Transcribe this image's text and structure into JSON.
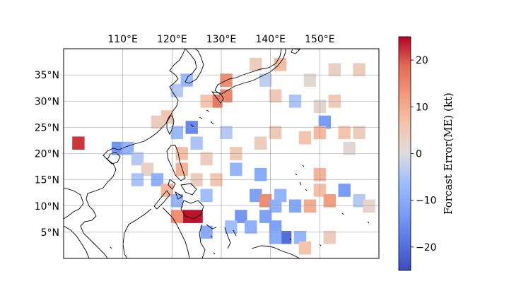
{
  "chart_data": {
    "type": "heatmap",
    "title": "",
    "xlabel": "",
    "ylabel": "",
    "projection": "PlateCarree",
    "lon_range": [
      98,
      162
    ],
    "lat_range": [
      0,
      40
    ],
    "cell_size_deg": 2.5,
    "grid": true,
    "x_ticks": [
      "110°E",
      "120°E",
      "130°E",
      "140°E",
      "150°E"
    ],
    "x_tick_values": [
      110,
      120,
      130,
      140,
      150
    ],
    "y_ticks": [
      "35°N",
      "30°N",
      "25°N",
      "20°N",
      "15°N",
      "10°N",
      "5°N"
    ],
    "y_tick_values": [
      35,
      30,
      25,
      20,
      15,
      10,
      5
    ],
    "colorbar": {
      "label": "Forcast Error(ME) (kt)",
      "colormap": "coolwarm",
      "range": [
        -25,
        25
      ],
      "ticks": [
        "20",
        "10",
        "0",
        "−10",
        "−20"
      ],
      "tick_values": [
        20,
        10,
        0,
        -10,
        -20
      ],
      "placement": "right"
    },
    "cells": [
      {
        "lon": 101,
        "lat": 22,
        "value": 22
      },
      {
        "lon": 109,
        "lat": 21,
        "value": -14
      },
      {
        "lon": 111,
        "lat": 21,
        "value": -8
      },
      {
        "lon": 113,
        "lat": 19,
        "value": -4
      },
      {
        "lon": 115,
        "lat": 17,
        "value": 3
      },
      {
        "lon": 113,
        "lat": 15,
        "value": -5
      },
      {
        "lon": 117,
        "lat": 15,
        "value": -9
      },
      {
        "lon": 119,
        "lat": 13,
        "value": 8
      },
      {
        "lon": 121,
        "lat": 11,
        "value": -8
      },
      {
        "lon": 123,
        "lat": 8,
        "value": 24
      },
      {
        "lon": 125,
        "lat": 8,
        "value": 24
      },
      {
        "lon": 121,
        "lat": 8,
        "value": 14
      },
      {
        "lon": 127,
        "lat": 5,
        "value": -10
      },
      {
        "lon": 129,
        "lat": 30,
        "value": 17
      },
      {
        "lon": 131,
        "lat": 31,
        "value": 15
      },
      {
        "lon": 131,
        "lat": 34,
        "value": 14
      },
      {
        "lon": 124,
        "lat": 25,
        "value": -16
      },
      {
        "lon": 121,
        "lat": 24,
        "value": -7
      },
      {
        "lon": 119,
        "lat": 27,
        "value": 6
      },
      {
        "lon": 117,
        "lat": 26,
        "value": 4
      },
      {
        "lon": 127,
        "lat": 30,
        "value": 6
      },
      {
        "lon": 121,
        "lat": 32,
        "value": -4
      },
      {
        "lon": 123,
        "lat": 34,
        "value": -7
      },
      {
        "lon": 137,
        "lat": 37,
        "value": 4
      },
      {
        "lon": 142,
        "lat": 37,
        "value": 7
      },
      {
        "lon": 139,
        "lat": 34,
        "value": -3
      },
      {
        "lon": 141,
        "lat": 31,
        "value": 5
      },
      {
        "lon": 145,
        "lat": 30,
        "value": -5
      },
      {
        "lon": 150,
        "lat": 29,
        "value": 2
      },
      {
        "lon": 148,
        "lat": 34,
        "value": 1
      },
      {
        "lon": 153,
        "lat": 30,
        "value": 5
      },
      {
        "lon": 153,
        "lat": 36,
        "value": 3
      },
      {
        "lon": 158,
        "lat": 36,
        "value": 4
      },
      {
        "lon": 151,
        "lat": 26,
        "value": -13
      },
      {
        "lon": 150,
        "lat": 24,
        "value": 8
      },
      {
        "lon": 155,
        "lat": 24,
        "value": 6
      },
      {
        "lon": 158,
        "lat": 24,
        "value": 4
      },
      {
        "lon": 156,
        "lat": 21,
        "value": 1
      },
      {
        "lon": 147,
        "lat": 23,
        "value": 6
      },
      {
        "lon": 141,
        "lat": 24,
        "value": 5
      },
      {
        "lon": 138,
        "lat": 22,
        "value": 4
      },
      {
        "lon": 133,
        "lat": 20,
        "value": 5
      },
      {
        "lon": 127,
        "lat": 19,
        "value": 4
      },
      {
        "lon": 133,
        "lat": 17,
        "value": -8
      },
      {
        "lon": 138,
        "lat": 16,
        "value": -10
      },
      {
        "lon": 137,
        "lat": 12,
        "value": -12
      },
      {
        "lon": 139,
        "lat": 11,
        "value": 14
      },
      {
        "lon": 142,
        "lat": 12,
        "value": -8
      },
      {
        "lon": 150,
        "lat": 16,
        "value": 9
      },
      {
        "lon": 150,
        "lat": 13,
        "value": 7
      },
      {
        "lon": 152,
        "lat": 11,
        "value": 12
      },
      {
        "lon": 155,
        "lat": 13,
        "value": -13
      },
      {
        "lon": 158,
        "lat": 11,
        "value": -4
      },
      {
        "lon": 160,
        "lat": 10,
        "value": 2
      },
      {
        "lon": 148,
        "lat": 10,
        "value": 10
      },
      {
        "lon": 145,
        "lat": 10,
        "value": -11
      },
      {
        "lon": 141,
        "lat": 10,
        "value": -9
      },
      {
        "lon": 139,
        "lat": 8,
        "value": -12
      },
      {
        "lon": 134,
        "lat": 8,
        "value": -14
      },
      {
        "lon": 132,
        "lat": 6,
        "value": -6
      },
      {
        "lon": 136,
        "lat": 6,
        "value": -9
      },
      {
        "lon": 141,
        "lat": 6,
        "value": -12
      },
      {
        "lon": 143,
        "lat": 4,
        "value": -20
      },
      {
        "lon": 141,
        "lat": 4,
        "value": -10
      },
      {
        "lon": 146,
        "lat": 4,
        "value": -8
      },
      {
        "lon": 147,
        "lat": 2,
        "value": 6
      },
      {
        "lon": 152,
        "lat": 4,
        "value": 4
      },
      {
        "lon": 127,
        "lat": 12,
        "value": -6
      },
      {
        "lon": 129,
        "lat": 15,
        "value": 6
      },
      {
        "lon": 125,
        "lat": 15,
        "value": 4
      },
      {
        "lon": 122,
        "lat": 17,
        "value": 9
      },
      {
        "lon": 122,
        "lat": 20,
        "value": 7
      },
      {
        "lon": 125,
        "lat": 22,
        "value": -5
      },
      {
        "lon": 131,
        "lat": 24,
        "value": -4
      }
    ]
  }
}
